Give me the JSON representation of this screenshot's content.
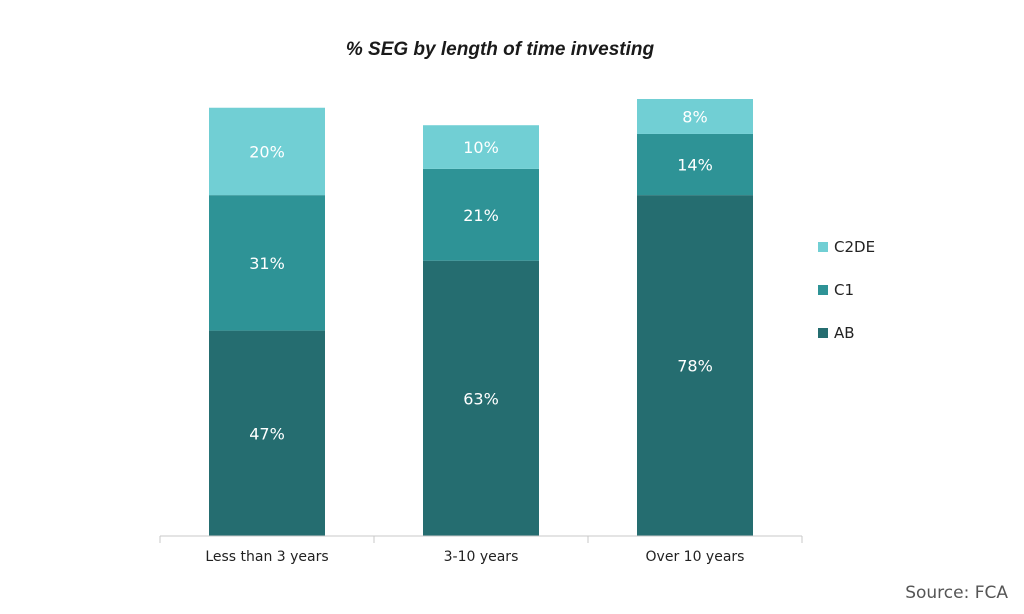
{
  "chart_data": {
    "type": "bar",
    "stacked": true,
    "title": "% SEG by length of time investing",
    "xlabel": "",
    "ylabel": "",
    "ylim": [
      0,
      100
    ],
    "categories": [
      "Less than 3 years",
      "3-10 years",
      "Over 10 years"
    ],
    "series": [
      {
        "name": "AB",
        "values": [
          47,
          63,
          78
        ],
        "labels": [
          "47%",
          "63%",
          "78%"
        ],
        "color": "#256D70"
      },
      {
        "name": "C1",
        "values": [
          31,
          21,
          14
        ],
        "labels": [
          "31%",
          "21%",
          "14%"
        ],
        "color": "#2E9396"
      },
      {
        "name": "C2DE",
        "values": [
          20,
          10,
          8
        ],
        "labels": [
          "20%",
          "10%",
          "8%"
        ],
        "color": "#71CFD4"
      }
    ],
    "legend_order": [
      "C2DE",
      "C1",
      "AB"
    ],
    "legend_position": "right",
    "grid": false,
    "source": "Source: FCA"
  }
}
